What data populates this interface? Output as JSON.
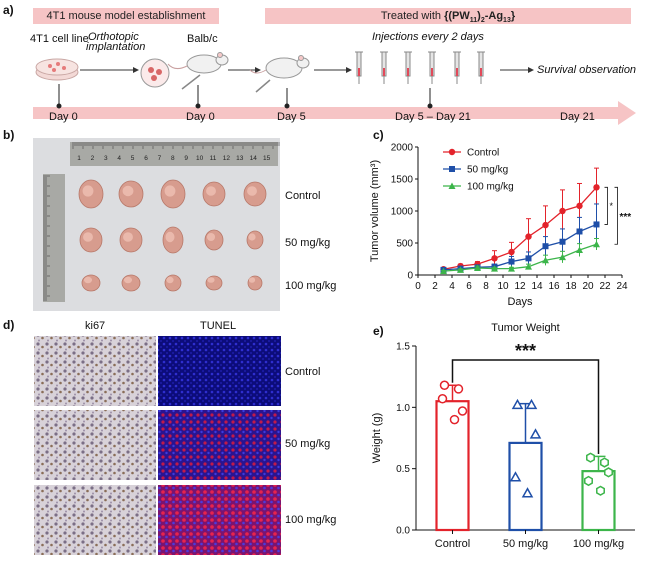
{
  "panel_a": {
    "letter": "a)",
    "bar1": "4T1 mouse model establishment",
    "bar2_prefix": "Treated with ",
    "bar2_formula": "{(PW11)2-Ag13}",
    "cell_line": "4T1 cell line",
    "orthotopic_1": "Orthotopic",
    "orthotopic_2": "implantation",
    "balbc": "Balb/c",
    "injections": "Injections every 2 days",
    "survival": "Survival observation",
    "timeline": [
      {
        "label": "Day 0"
      },
      {
        "label": "Day 0"
      },
      {
        "label": "Day 5"
      },
      {
        "label": "Day 5 – Day 21"
      },
      {
        "label": "Day 21"
      }
    ]
  },
  "panel_b": {
    "letter": "b)",
    "groups": [
      "Control",
      "50 mg/kg",
      "100 mg/kg"
    ],
    "ruler_numbers": [
      "1",
      "2",
      "3",
      "4",
      "5",
      "6",
      "7",
      "8",
      "9",
      "10",
      "11",
      "12",
      "13",
      "14",
      "15"
    ]
  },
  "panel_c": {
    "letter": "c)",
    "chart_data": {
      "type": "line",
      "xlabel": "Days",
      "ylabel": "Tumor volume (mm³)",
      "xlim": [
        0,
        24
      ],
      "ylim": [
        0,
        2000
      ],
      "xticks": [
        0,
        2,
        4,
        6,
        8,
        10,
        12,
        14,
        16,
        18,
        20,
        22,
        24
      ],
      "yticks": [
        0,
        500,
        1000,
        1500,
        2000
      ],
      "legend_position": "top-left",
      "significance": [
        "*",
        "***"
      ],
      "series": [
        {
          "name": "Control",
          "color": "#e3232b",
          "marker": "circle",
          "x": [
            3,
            5,
            7,
            9,
            11,
            13,
            15,
            17,
            19,
            21
          ],
          "y": [
            90,
            140,
            170,
            260,
            360,
            600,
            780,
            1000,
            1080,
            1370
          ],
          "err": [
            20,
            30,
            40,
            120,
            150,
            280,
            300,
            330,
            350,
            300
          ]
        },
        {
          "name": "50 mg/kg",
          "color": "#1f4fa8",
          "marker": "square",
          "x": [
            3,
            5,
            7,
            9,
            11,
            13,
            15,
            17,
            19,
            21
          ],
          "y": [
            80,
            100,
            120,
            130,
            210,
            260,
            450,
            520,
            680,
            790
          ],
          "err": [
            15,
            20,
            30,
            40,
            80,
            100,
            150,
            200,
            220,
            320
          ]
        },
        {
          "name": "100 mg/kg",
          "color": "#3cb54a",
          "marker": "triangle",
          "x": [
            3,
            5,
            7,
            9,
            11,
            13,
            15,
            17,
            19,
            21
          ],
          "y": [
            60,
            80,
            110,
            100,
            100,
            130,
            230,
            280,
            390,
            480
          ],
          "err": [
            10,
            15,
            30,
            20,
            20,
            40,
            80,
            90,
            100,
            90
          ]
        }
      ]
    }
  },
  "panel_d": {
    "letter": "d)",
    "col1": "ki67",
    "col2": "TUNEL",
    "rows": [
      "Control",
      "50 mg/kg",
      "100 mg/kg"
    ]
  },
  "panel_e": {
    "letter": "e)",
    "chart_data": {
      "type": "bar",
      "title": "Tumor Weight",
      "ylabel": "Weight (g)",
      "categories": [
        "Control",
        "50 mg/kg",
        "100 mg/kg"
      ],
      "values": [
        1.05,
        0.71,
        0.48
      ],
      "err": [
        0.13,
        0.32,
        0.12
      ],
      "colors": [
        "#e3232b",
        "#1f4fa8",
        "#3cb54a"
      ],
      "markers": [
        "circle",
        "triangle",
        "hexagon"
      ],
      "points": [
        [
          1.18,
          1.15,
          0.97,
          1.07,
          0.9
        ],
        [
          1.02,
          1.02,
          0.78,
          0.43,
          0.3
        ],
        [
          0.59,
          0.55,
          0.47,
          0.4,
          0.32
        ]
      ],
      "ylim": [
        0,
        1.5
      ],
      "yticks": [
        0.0,
        0.5,
        1.0,
        1.5
      ],
      "significance": "***"
    }
  }
}
